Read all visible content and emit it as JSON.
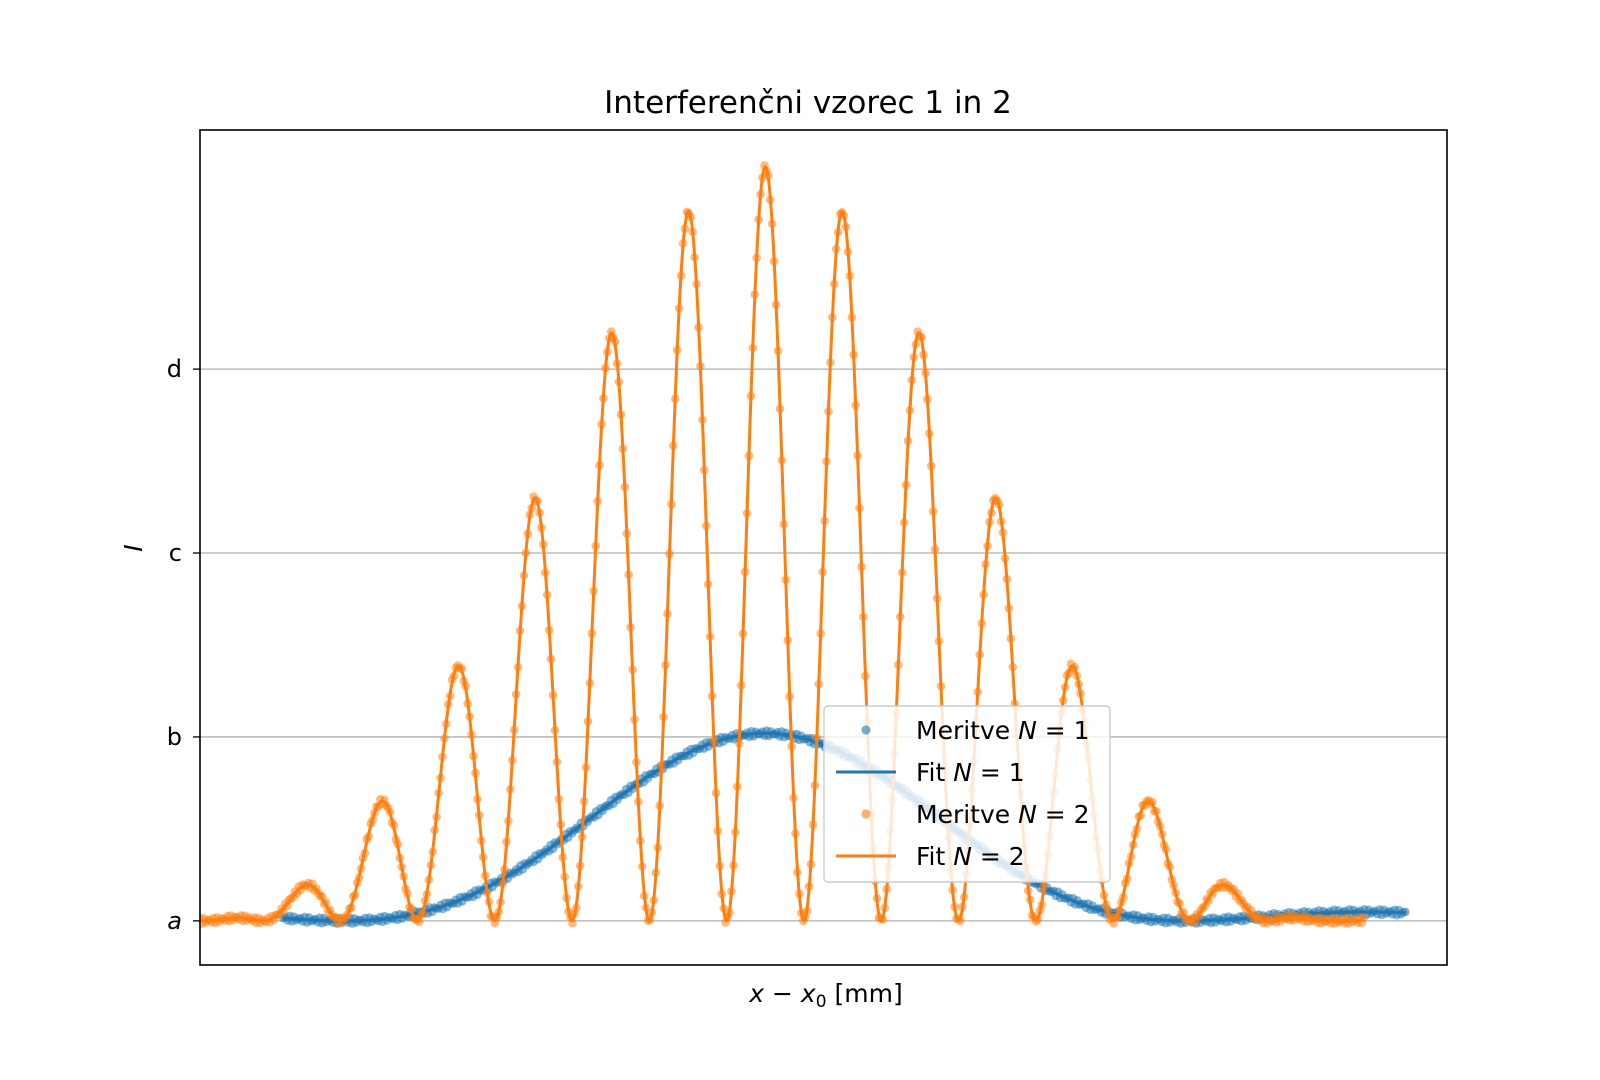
{
  "chart_data": {
    "type": "line",
    "title": "Interferenčni vzorec 1 in 2",
    "xlabel": "x − x₀ [mm]",
    "ylabel": "I",
    "xlim": [
      -7,
      8
    ],
    "ylim": [
      -0.24,
      4.3
    ],
    "y_ticks": [
      {
        "value": 0,
        "label": "a",
        "italic": true
      },
      {
        "value": 1,
        "label": "b",
        "italic": false
      },
      {
        "value": 2,
        "label": "c",
        "italic": false
      },
      {
        "value": 3,
        "label": "d",
        "italic": false
      }
    ],
    "grid": "horizontal",
    "legend_position": "center-right",
    "series": [
      {
        "name": "Meritve N = 1",
        "kind": "scatter",
        "color": "#1f77b4",
        "model": "single_slit",
        "params": {
          "amplitude": 1.02,
          "center": -0.2,
          "width_factor": 0.62,
          "x_min": -6.0,
          "x_max": 7.5
        }
      },
      {
        "name": "Fit N = 1",
        "kind": "line",
        "color": "#1f77b4",
        "model": "single_slit",
        "params": {
          "amplitude": 1.02,
          "center": -0.2,
          "width_factor": 0.62,
          "x_min": -6.0,
          "x_max": 7.5
        }
      },
      {
        "name": "Meritve N = 2",
        "kind": "scatter",
        "color": "#ff7f0e",
        "model": "double_slit",
        "params": {
          "amplitude": 4.1,
          "center": -0.2,
          "envelope_factor": 0.46,
          "fringe_period": 0.93,
          "x_min": -7.0,
          "x_max": 7.0
        }
      },
      {
        "name": "Fit N = 2",
        "kind": "line",
        "color": "#ff7f0e",
        "model": "double_slit",
        "params": {
          "amplitude": 4.1,
          "center": -0.2,
          "envelope_factor": 0.46,
          "fringe_period": 0.93,
          "x_min": -7.0,
          "x_max": 7.0
        }
      }
    ]
  },
  "legend": {
    "items": [
      {
        "prefix": "Meritve ",
        "var": "N",
        "rest": " = 1"
      },
      {
        "prefix": "Fit ",
        "var": "N",
        "rest": " = 1"
      },
      {
        "prefix": "Meritve ",
        "var": "N",
        "rest": " = 2"
      },
      {
        "prefix": "Fit ",
        "var": "N",
        "rest": " = 2"
      }
    ]
  },
  "axes": {
    "x_label_var": "x",
    "x_label_minus": " − ",
    "x_label_sub_var": "x",
    "x_label_sub": "0",
    "x_label_unit": " [mm]",
    "y_label": "I"
  }
}
